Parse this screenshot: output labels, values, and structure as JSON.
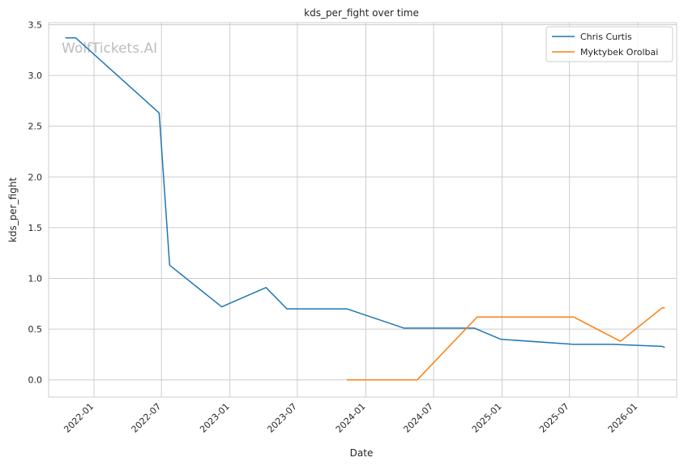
{
  "chart_data": {
    "type": "line",
    "title": "kds_per_fight over time",
    "xlabel": "Date",
    "ylabel": "kds_per_fight",
    "watermark": "WolfTickets.AI",
    "grid": true,
    "legend_position": "top-right",
    "xlim": [
      "2021-09-01",
      "2026-04-15"
    ],
    "ylim": [
      -0.17,
      3.52
    ],
    "x_ticks": [
      "2022-01",
      "2022-07",
      "2023-01",
      "2023-07",
      "2024-01",
      "2024-07",
      "2025-01",
      "2025-07",
      "2026-01"
    ],
    "y_ticks": [
      "0.0",
      "0.5",
      "1.0",
      "1.5",
      "2.0",
      "2.5",
      "3.0",
      "3.5"
    ],
    "series": [
      {
        "name": "Chris Curtis",
        "color": "#1f77b4",
        "points": [
          {
            "x": "2021-10-16",
            "y": 3.37
          },
          {
            "x": "2021-11-13",
            "y": 3.37
          },
          {
            "x": "2022-06-25",
            "y": 2.63
          },
          {
            "x": "2022-07-23",
            "y": 1.13
          },
          {
            "x": "2022-12-10",
            "y": 0.72
          },
          {
            "x": "2023-04-08",
            "y": 0.91
          },
          {
            "x": "2023-06-03",
            "y": 0.7
          },
          {
            "x": "2023-11-11",
            "y": 0.7
          },
          {
            "x": "2024-04-13",
            "y": 0.51
          },
          {
            "x": "2024-10-19",
            "y": 0.51
          },
          {
            "x": "2024-12-28",
            "y": 0.4
          },
          {
            "x": "2025-07-12",
            "y": 0.35
          },
          {
            "x": "2025-10-25",
            "y": 0.35
          },
          {
            "x": "2026-03-07",
            "y": 0.33
          },
          {
            "x": "2026-03-14",
            "y": 0.32
          }
        ]
      },
      {
        "name": "Myktybek Orolbai",
        "color": "#ff7f0e",
        "points": [
          {
            "x": "2023-11-11",
            "y": 0.0
          },
          {
            "x": "2024-05-18",
            "y": 0.0
          },
          {
            "x": "2024-10-26",
            "y": 0.62
          },
          {
            "x": "2025-07-12",
            "y": 0.62
          },
          {
            "x": "2025-11-15",
            "y": 0.38
          },
          {
            "x": "2026-03-07",
            "y": 0.71
          },
          {
            "x": "2026-03-14",
            "y": 0.71
          }
        ]
      }
    ]
  }
}
